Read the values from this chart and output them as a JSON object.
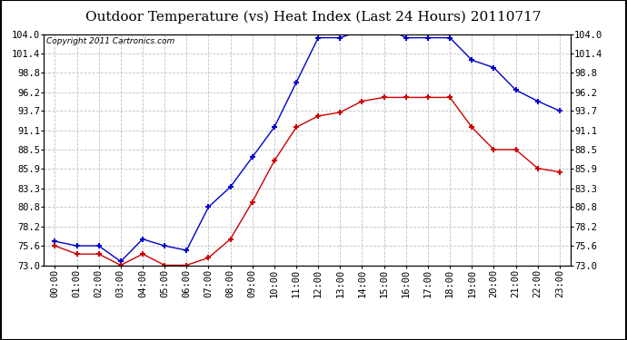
{
  "title": "Outdoor Temperature (vs) Heat Index (Last 24 Hours) 20110717",
  "copyright": "Copyright 2011 Cartronics.com",
  "x_labels": [
    "00:00",
    "01:00",
    "02:00",
    "03:00",
    "04:00",
    "05:00",
    "06:00",
    "07:00",
    "08:00",
    "09:00",
    "10:00",
    "11:00",
    "12:00",
    "13:00",
    "14:00",
    "15:00",
    "16:00",
    "17:00",
    "18:00",
    "19:00",
    "20:00",
    "21:00",
    "22:00",
    "23:00"
  ],
  "blue_data": [
    76.2,
    75.6,
    75.6,
    73.5,
    76.5,
    75.6,
    75.0,
    80.8,
    83.5,
    87.5,
    91.5,
    97.5,
    103.5,
    103.5,
    104.5,
    105.0,
    103.5,
    103.5,
    103.5,
    100.5,
    99.5,
    96.5,
    95.0,
    93.7
  ],
  "red_data": [
    75.6,
    74.5,
    74.5,
    73.0,
    74.5,
    73.0,
    73.0,
    74.0,
    76.5,
    81.5,
    87.0,
    91.5,
    93.0,
    93.5,
    95.0,
    95.5,
    95.5,
    95.5,
    95.5,
    91.5,
    88.5,
    88.5,
    86.0,
    85.5
  ],
  "blue_color": "#0000CC",
  "red_color": "#CC0000",
  "bg_color": "#FFFFFF",
  "plot_bg_color": "#FFFFFF",
  "grid_color": "#C0C0C0",
  "yticks": [
    73.0,
    75.6,
    78.2,
    80.8,
    83.3,
    85.9,
    88.5,
    91.1,
    93.7,
    96.2,
    98.8,
    101.4,
    104.0
  ],
  "ymin": 73.0,
  "ymax": 104.0,
  "title_fontsize": 11,
  "copyright_fontsize": 6.5,
  "tick_fontsize": 7.5
}
